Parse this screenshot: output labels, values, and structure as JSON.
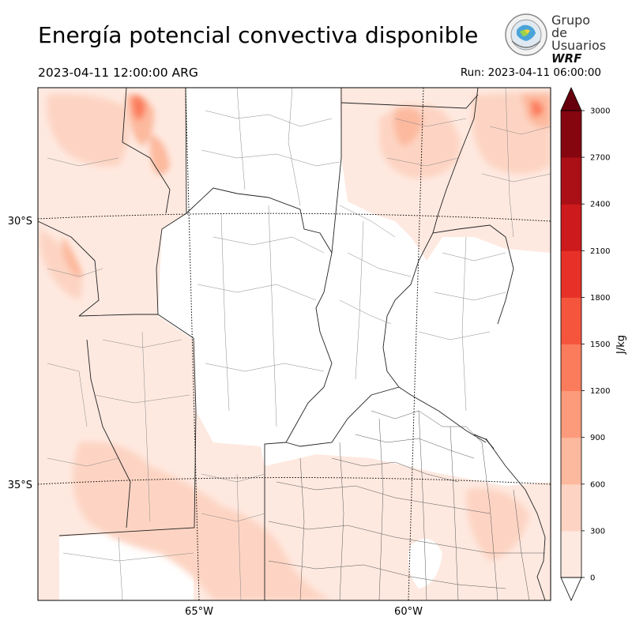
{
  "header": {
    "title": "Energía potencial convectiva disponible",
    "valid_time": "2023-04-11 12:00:00 ARG",
    "run_time": "Run: 2023-04-11 06:00:00"
  },
  "logo": {
    "line1": "Grupo de",
    "line2": "Usuarios",
    "line3": "WRF"
  },
  "map": {
    "lon_labels": [
      "65°W",
      "60°W"
    ],
    "lat_labels": [
      "30°S",
      "35°S"
    ]
  },
  "colorbar": {
    "unit": "J/kg",
    "levels": [
      0,
      300,
      600,
      900,
      1200,
      1500,
      1800,
      2100,
      2400,
      2700,
      3000
    ],
    "tick_labels": [
      "0",
      "300",
      "600",
      "900",
      "1200",
      "1500",
      "1800",
      "2100",
      "2400",
      "2700",
      "3000"
    ],
    "colors": [
      "#fee9e0",
      "#fdd4c3",
      "#fcb99e",
      "#fc9b7b",
      "#fb7c5c",
      "#f5553d",
      "#e73128",
      "#cd1a1d",
      "#ab1016",
      "#85060f"
    ],
    "over_color": "#67000d"
  }
}
